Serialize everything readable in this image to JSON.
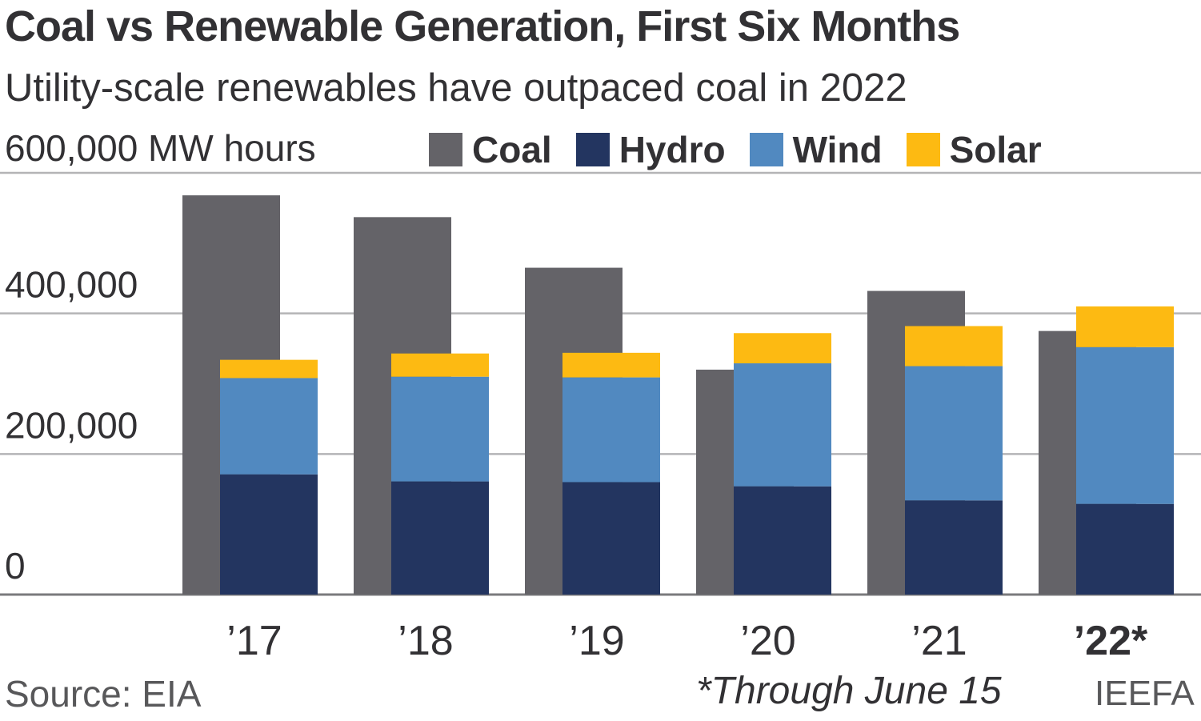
{
  "chart_data": {
    "type": "bar",
    "title": "Coal vs Renewable Generation, First Six Months",
    "subtitle": "Utility-scale renewables have outpaced coal in 2022",
    "unit_label": "600,000 MW hours",
    "categories": [
      "’17",
      "’18",
      "’19",
      "’20",
      "’21",
      "’22*"
    ],
    "series": [
      {
        "name": "Coal",
        "color": "#646368",
        "stack": "coal",
        "values": [
          568000,
          537000,
          465000,
          320000,
          432000,
          375000
        ]
      },
      {
        "name": "Hydro",
        "color": "#233560",
        "stack": "renewables",
        "values": [
          171000,
          161000,
          160000,
          154000,
          134000,
          129000
        ]
      },
      {
        "name": "Wind",
        "color": "#5189c0",
        "stack": "renewables",
        "values": [
          137000,
          149000,
          149000,
          175000,
          191000,
          223000
        ]
      },
      {
        "name": "Solar",
        "color": "#fdba12",
        "stack": "renewables",
        "values": [
          26000,
          33000,
          35000,
          43000,
          57000,
          58000
        ]
      }
    ],
    "y_ticks": [
      0,
      200000,
      400000
    ],
    "y_tick_labels": [
      "0",
      "200,000",
      "400,000"
    ],
    "ylim": [
      0,
      600000
    ],
    "grid": true,
    "legend": "top",
    "highlight_category": "’22*",
    "source": "Source: EIA",
    "footnote": "*Through June 15",
    "credit": "IEEFA"
  }
}
